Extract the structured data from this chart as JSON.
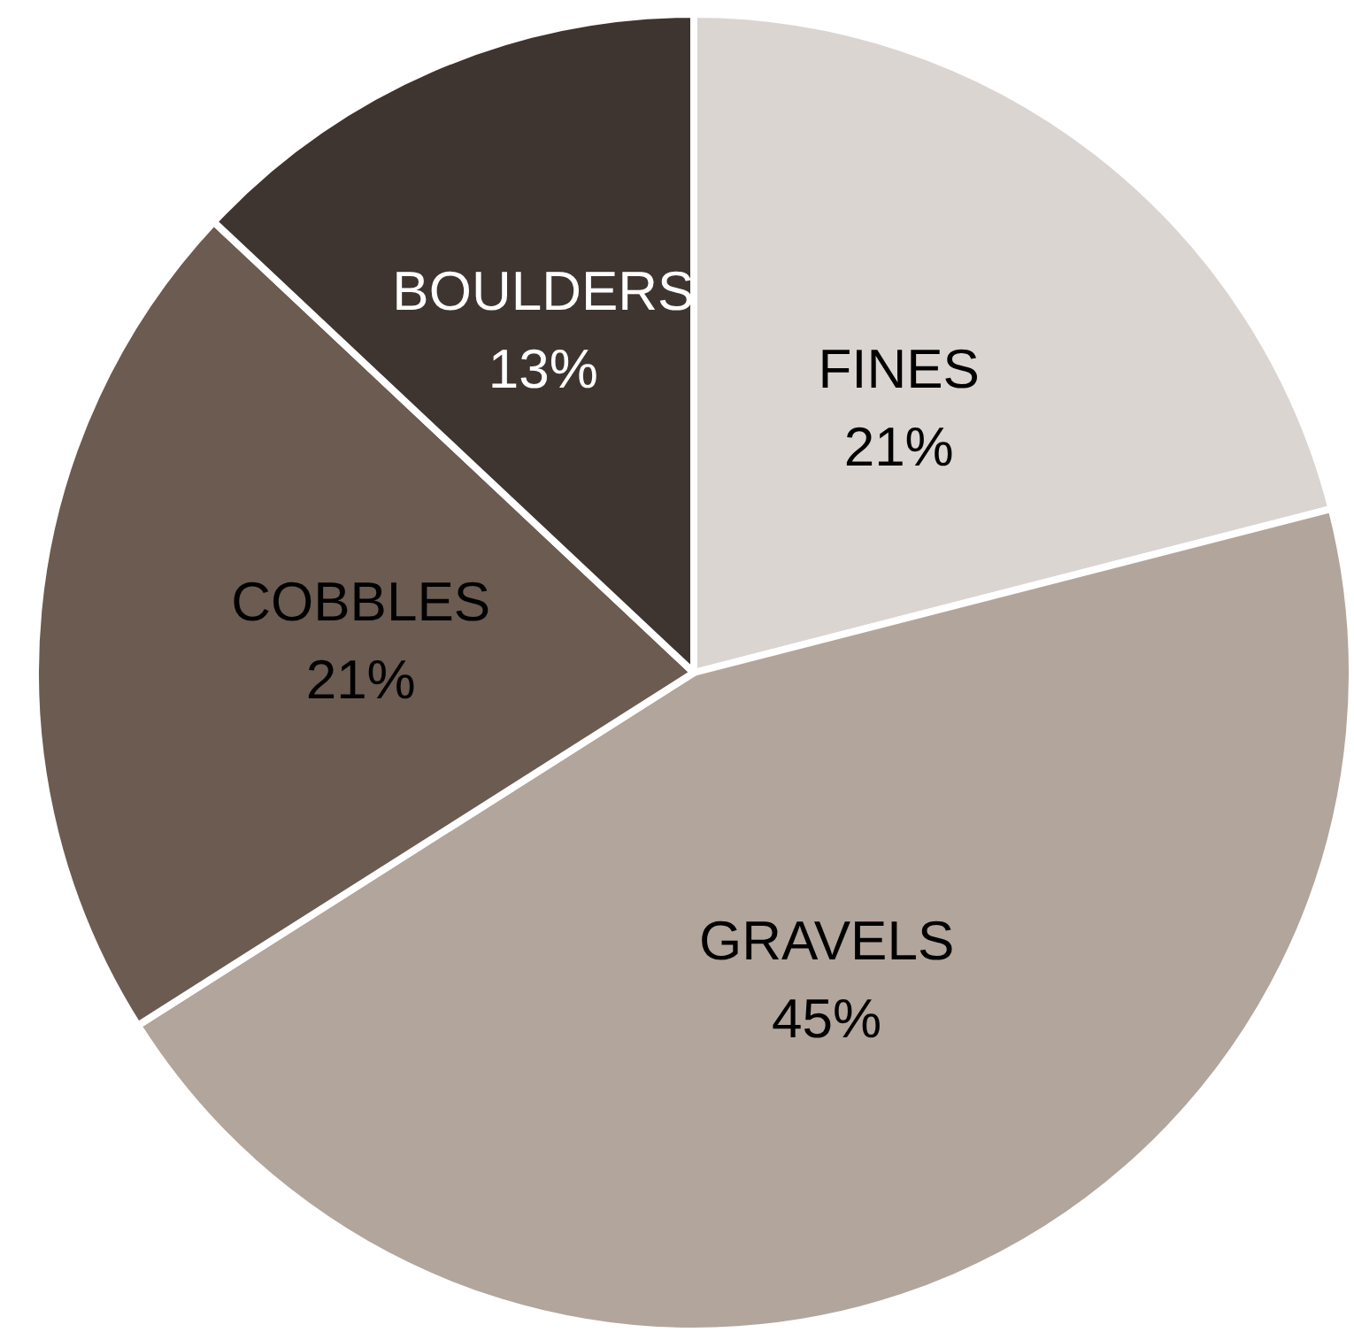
{
  "chart_data": {
    "type": "pie",
    "categories": [
      "FINES",
      "GRAVELS",
      "COBBLES",
      "BOULDERS"
    ],
    "values": [
      21,
      45,
      21,
      13
    ],
    "colors": [
      "#dbd5d2",
      "#b2a59c",
      "#6b5b51",
      "#3e3430"
    ],
    "value_labels": [
      "21%",
      "45%",
      "21%",
      "13%"
    ],
    "legend": false
  }
}
